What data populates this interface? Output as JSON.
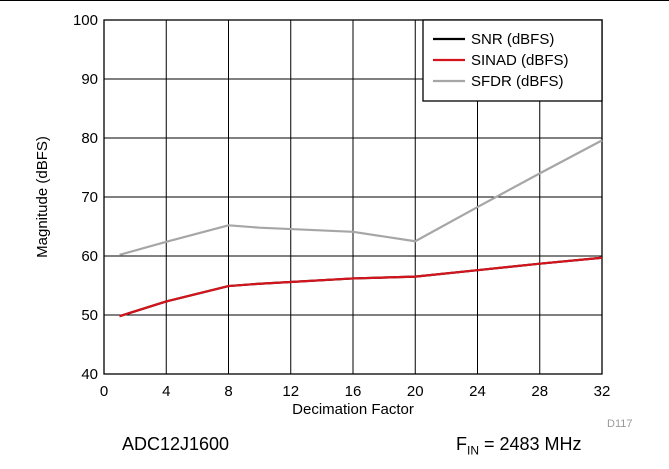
{
  "chart_data": {
    "type": "line",
    "xlabel": "Decimation Factor",
    "ylabel": "Magnitude (dBFS)",
    "xlim": [
      0,
      32
    ],
    "ylim": [
      40,
      100
    ],
    "xticks": [
      "0",
      "4",
      "8",
      "12",
      "16",
      "20",
      "24",
      "28",
      "32"
    ],
    "yticks": [
      "40",
      "50",
      "60",
      "70",
      "80",
      "90",
      "100"
    ],
    "grid": true,
    "legend_position": "top-right",
    "series": [
      {
        "name": "SNR (dBFS)",
        "color": "#000000",
        "x": [
          1,
          4,
          8,
          10,
          16,
          20,
          24,
          28,
          32
        ],
        "y": [
          49.8,
          52.3,
          54.9,
          55.3,
          56.2,
          56.5,
          57.6,
          58.7,
          59.7
        ]
      },
      {
        "name": "SINAD (dBFS)",
        "color": "#d4141c",
        "x": [
          1,
          4,
          8,
          10,
          16,
          20,
          24,
          28,
          32
        ],
        "y": [
          49.8,
          52.3,
          54.9,
          55.3,
          56.2,
          56.5,
          57.6,
          58.7,
          59.7
        ]
      },
      {
        "name": "SFDR (dBFS)",
        "color": "#a6a6a6",
        "x": [
          1,
          4,
          8,
          10,
          16,
          20,
          24,
          28,
          32
        ],
        "y": [
          60.2,
          62.4,
          65.2,
          64.8,
          64.1,
          62.5,
          68.3,
          74.0,
          79.6
        ]
      }
    ],
    "annotation": "D117"
  },
  "captions": {
    "device": "ADC12J1600",
    "fin_prefix": "F",
    "fin_subscript": "IN",
    "fin_value": " = 2483 MHz"
  }
}
